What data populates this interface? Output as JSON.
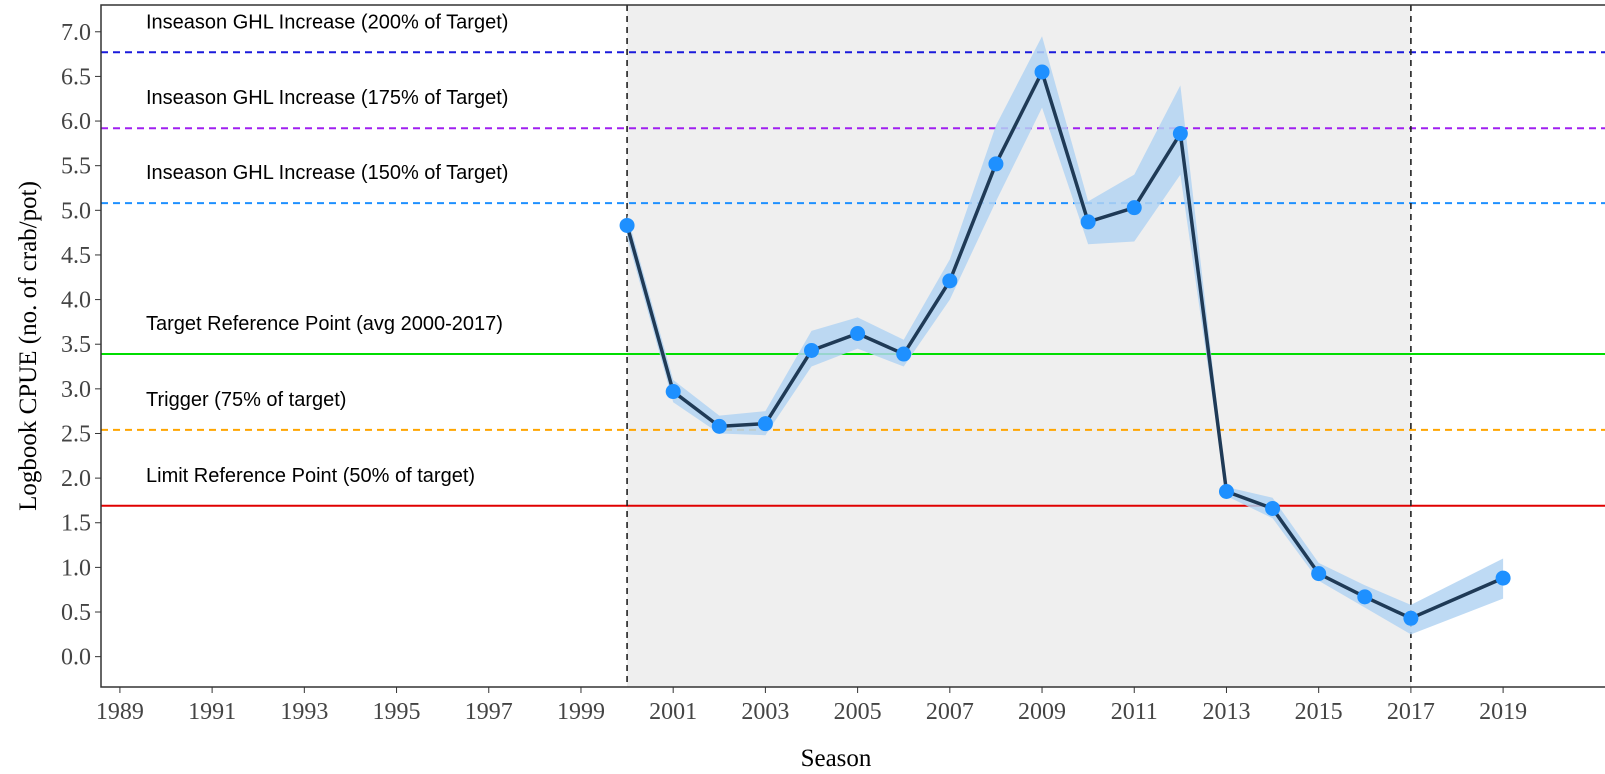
{
  "chart_data": {
    "type": "line",
    "x_label": "Season",
    "y_label": "Logbook CPUE (no. of crab/pot)",
    "x": [
      2000,
      2001,
      2002,
      2003,
      2004,
      2005,
      2006,
      2007,
      2008,
      2009,
      2010,
      2011,
      2012,
      2013,
      2014,
      2015,
      2016,
      2017,
      2019
    ],
    "values": [
      4.83,
      2.97,
      2.58,
      2.61,
      3.43,
      3.62,
      3.39,
      4.21,
      5.52,
      6.55,
      4.87,
      5.03,
      5.86,
      1.85,
      1.66,
      0.93,
      0.67,
      0.43,
      0.88
    ],
    "lower": [
      4.7,
      2.85,
      2.5,
      2.48,
      3.25,
      3.45,
      3.25,
      4.0,
      5.1,
      6.15,
      4.62,
      4.65,
      5.4,
      1.8,
      1.55,
      0.85,
      0.55,
      0.25,
      0.65
    ],
    "upper": [
      4.95,
      3.1,
      2.7,
      2.75,
      3.65,
      3.8,
      3.55,
      4.45,
      5.95,
      6.95,
      5.1,
      5.4,
      6.4,
      1.9,
      1.78,
      1.05,
      0.8,
      0.58,
      1.1
    ],
    "line_color": "#1f3a56",
    "point_color": "#1e90ff",
    "band_color": "#b3d3f2",
    "shaded_range": [
      2000,
      2017
    ],
    "shaded_color": "#efefef",
    "vlines": [
      2000,
      2017
    ],
    "reference_lines": [
      {
        "label": "Inseason GHL Increase  (200% of Target)",
        "value": 6.77,
        "color": "#1a1adb",
        "dashed": true
      },
      {
        "label": "Inseason GHL Increase  (175% of Target)",
        "value": 5.92,
        "color": "#a020f0",
        "dashed": true
      },
      {
        "label": "Inseason GHL Increase  (150% of Target)",
        "value": 5.08,
        "color": "#1e90ff",
        "dashed": true
      },
      {
        "label": "Target Reference Point (avg 2000-2017)",
        "value": 3.39,
        "color": "#00dd00",
        "dashed": false
      },
      {
        "label": "Trigger (75% of target)",
        "value": 2.54,
        "color": "#ffa500",
        "dashed": true
      },
      {
        "label": "Limit Reference Point (50% of target)",
        "value": 1.69,
        "color": "#e00000",
        "dashed": false
      }
    ],
    "xlim": [
      1988.59,
      2021.21
    ],
    "ylim": [
      -0.34,
      7.3
    ],
    "xticks": [
      1989,
      1991,
      1993,
      1995,
      1997,
      1999,
      2001,
      2003,
      2005,
      2007,
      2009,
      2011,
      2013,
      2015,
      2017,
      2019
    ],
    "yticks": [
      {
        "value": 0,
        "label": "0.0"
      },
      0.5,
      {
        "value": 1,
        "label": "1.0"
      },
      1.5,
      {
        "value": 2,
        "label": "2.0"
      },
      2.5,
      {
        "value": 3,
        "label": "3.0"
      },
      3.5,
      {
        "value": 4,
        "label": "4.0"
      },
      4.5,
      {
        "value": 5,
        "label": "5.0"
      },
      5.5,
      {
        "value": 6,
        "label": "6.0"
      },
      6.5,
      {
        "value": 7,
        "label": "7.0"
      }
    ]
  }
}
